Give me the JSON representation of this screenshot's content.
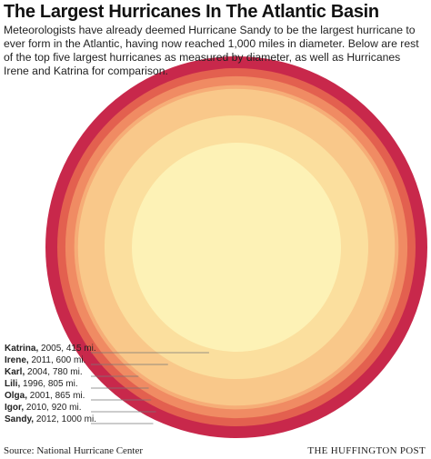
{
  "chart_data": {
    "type": "concentric",
    "title": "The Largest Hurricanes In The Atlantic Basin",
    "subtitle": "Meteorologists have already deemed Hurricane Sandy to be the largest hurricane to ever form in the Atlantic, having now reached 1,000 miles in diameter. Below are rest of the top five largest hurricanes as measured by diameter, as well as Hurricanes Irene and Katrina for comparison.",
    "categories": [
      "Katrina,",
      "Irene,",
      "Karl,",
      "Lili,",
      "Olga,",
      "Igor,",
      "Sandy,"
    ],
    "years": [
      "2005,",
      "2011,",
      "2004,",
      "1996,",
      "2001,",
      "2010,",
      "2012,"
    ],
    "values": [
      415,
      600,
      780,
      805,
      865,
      920,
      1000
    ],
    "value_labels": [
      "415 mi.",
      "600 mi.",
      "780 mi.",
      "805 mi.",
      "865 mi.",
      "920 mi.",
      "1000 mi."
    ],
    "colors": [
      "#fdf2b6",
      "#fbdf9e",
      "#f9c88a",
      "#f6ad77",
      "#f08b63",
      "#e3604f",
      "#c8284b"
    ],
    "source": "Source: National Hurricane Center",
    "brand": "THE HUFFINGTON POST"
  }
}
